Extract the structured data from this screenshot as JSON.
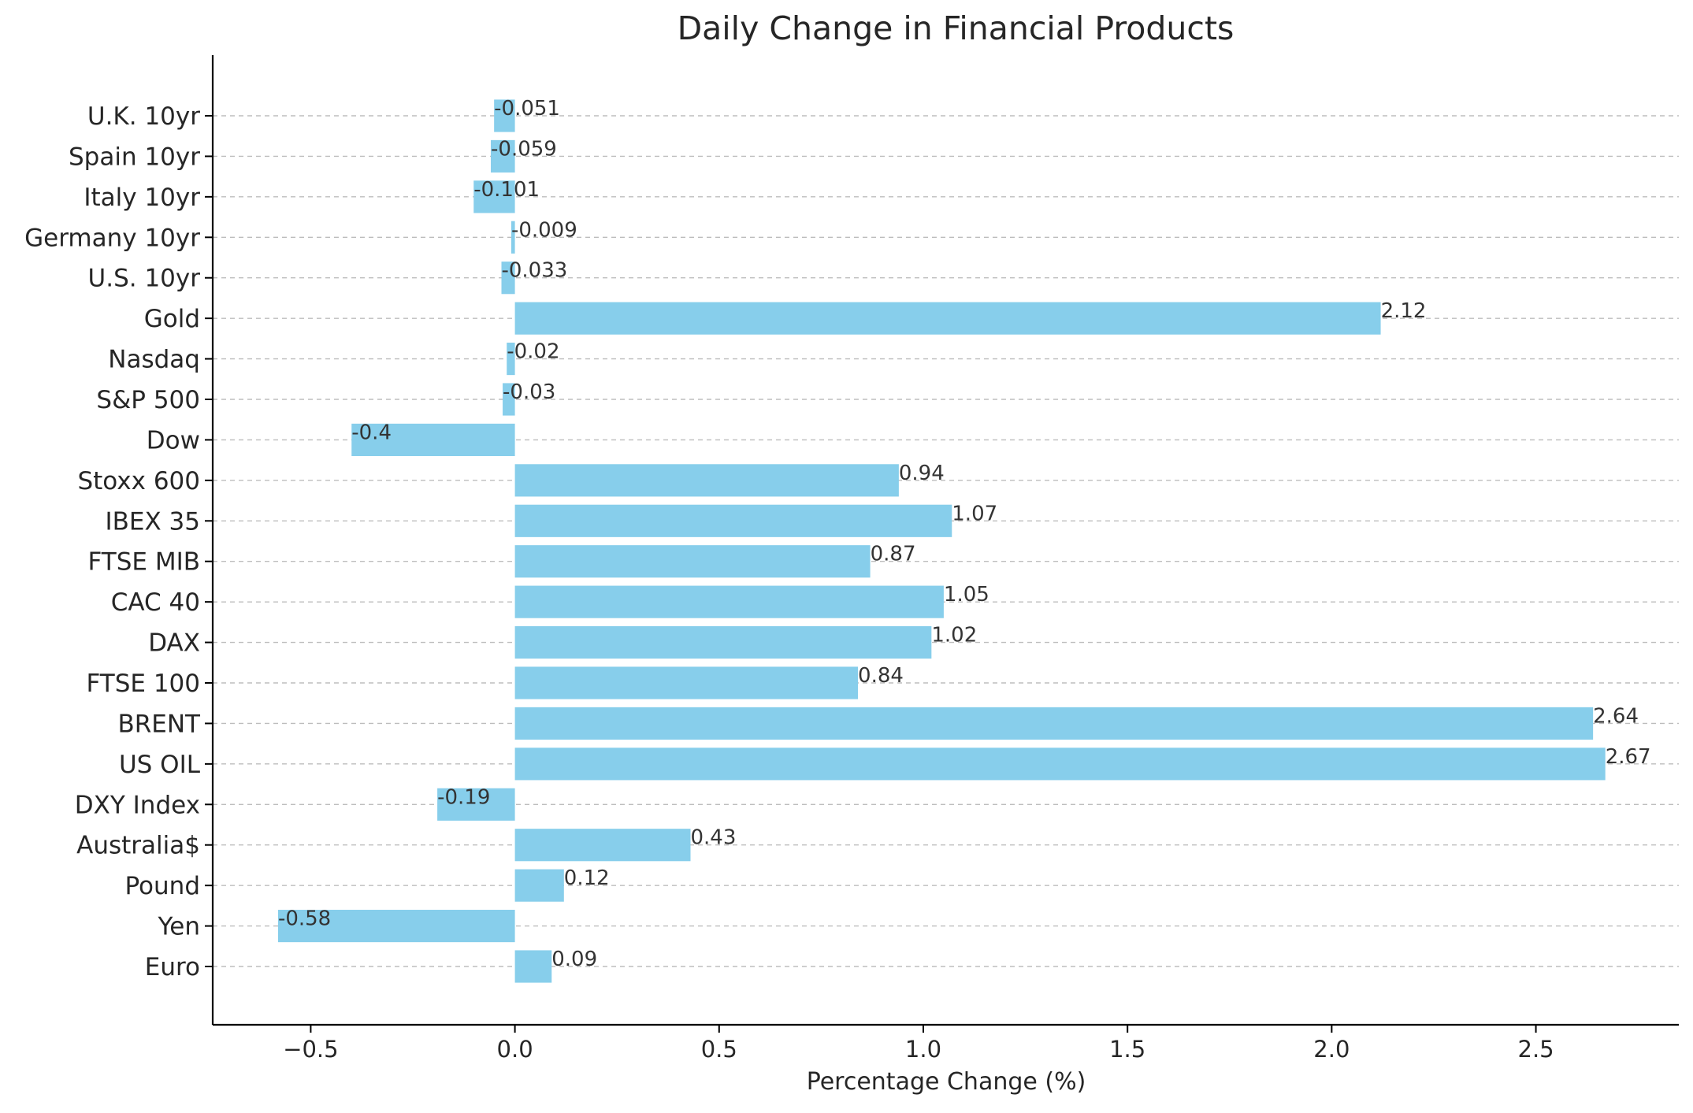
{
  "chart_data": {
    "type": "bar",
    "orientation": "horizontal",
    "title": "Daily Change in Financial Products",
    "xlabel": "Percentage Change (%)",
    "ylabel": "",
    "xlim": [
      -0.74,
      2.85
    ],
    "xticks": [
      -0.5,
      0.0,
      0.5,
      1.0,
      1.5,
      2.0,
      2.5
    ],
    "xtick_labels": [
      "−0.5",
      "0.0",
      "0.5",
      "1.0",
      "1.5",
      "2.0",
      "2.5"
    ],
    "grid": "y-dashed",
    "bar_color": "#87ceeb",
    "categories": [
      "Euro",
      "Yen",
      "Pound",
      "Australia$",
      "DXY Index",
      "US OIL",
      "BRENT",
      "FTSE 100",
      "DAX",
      "CAC 40",
      "FTSE MIB",
      "IBEX 35",
      "Stoxx 600",
      "Dow",
      "S&P 500",
      "Nasdaq",
      "Gold",
      "U.S. 10yr",
      "Germany 10yr",
      "Italy 10yr",
      "Spain 10yr",
      "U.K. 10yr"
    ],
    "values": [
      0.09,
      -0.58,
      0.12,
      0.43,
      -0.19,
      2.67,
      2.64,
      0.84,
      1.02,
      1.05,
      0.87,
      1.07,
      0.94,
      -0.4,
      -0.03,
      -0.02,
      2.12,
      -0.033,
      -0.009,
      -0.101,
      -0.059,
      -0.051
    ],
    "value_labels": [
      "0.09",
      "-0.58",
      "0.12",
      "0.43",
      "-0.19",
      "2.67",
      "2.64",
      "0.84",
      "1.02",
      "1.05",
      "0.87",
      "1.07",
      "0.94",
      "-0.4",
      "-0.03",
      "-0.02",
      "2.12",
      "-0.033",
      "-0.009",
      "-0.101",
      "-0.059",
      "-0.051"
    ]
  }
}
